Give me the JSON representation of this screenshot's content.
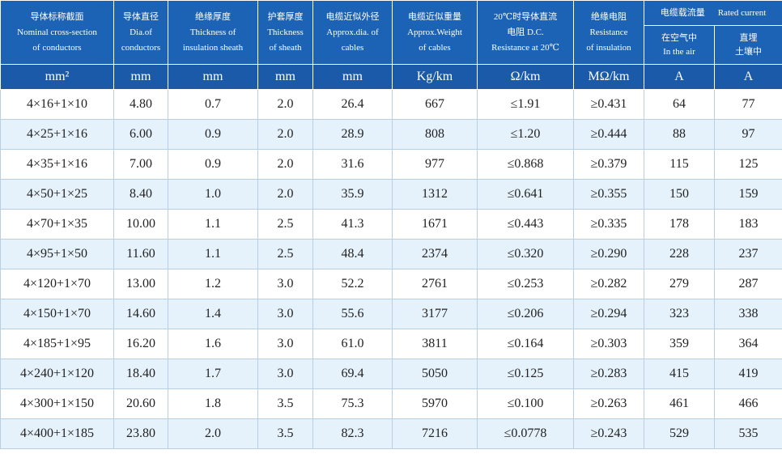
{
  "table": {
    "columns": [
      [
        "导体标称截面",
        "Nominal cross-section",
        "of conductors"
      ],
      [
        "导体直径",
        "Dia.of",
        "conductors"
      ],
      [
        "绝缘厚度",
        "Thickness of",
        "insulation sheath"
      ],
      [
        "护套厚度",
        "Thickness",
        "of sheath"
      ],
      [
        "电缆近似外径",
        "Approx.dia. of",
        "cables"
      ],
      [
        "电缆近似重量",
        "Approx.Weight",
        "of cables"
      ],
      [
        "20℃时导体直流",
        "电阻 D.C.",
        "Resistance at 20℃"
      ],
      [
        "绝缘电阻",
        "Resistance",
        "of insulation"
      ]
    ],
    "group": [
      "电缆载流量",
      "Rated current"
    ],
    "subcolumns": [
      [
        "在空气中",
        "In the air"
      ],
      [
        "直埋",
        "土壤中"
      ]
    ],
    "units": [
      "mm²",
      "mm",
      "mm",
      "mm",
      "mm",
      "Kg/km",
      "Ω/km",
      "MΩ/km",
      "A",
      "A"
    ],
    "rows": [
      [
        "4×16+1×10",
        "4.80",
        "0.7",
        "2.0",
        "26.4",
        "667",
        "≤1.91",
        "≥0.431",
        "64",
        "77"
      ],
      [
        "4×25+1×16",
        "6.00",
        "0.9",
        "2.0",
        "28.9",
        "808",
        "≤1.20",
        "≥0.444",
        "88",
        "97"
      ],
      [
        "4×35+1×16",
        "7.00",
        "0.9",
        "2.0",
        "31.6",
        "977",
        "≤0.868",
        "≥0.379",
        "115",
        "125"
      ],
      [
        "4×50+1×25",
        "8.40",
        "1.0",
        "2.0",
        "35.9",
        "1312",
        "≤0.641",
        "≥0.355",
        "150",
        "159"
      ],
      [
        "4×70+1×35",
        "10.00",
        "1.1",
        "2.5",
        "41.3",
        "1671",
        "≤0.443",
        "≥0.335",
        "178",
        "183"
      ],
      [
        "4×95+1×50",
        "11.60",
        "1.1",
        "2.5",
        "48.4",
        "2374",
        "≤0.320",
        "≥0.290",
        "228",
        "237"
      ],
      [
        "4×120+1×70",
        "13.00",
        "1.2",
        "3.0",
        "52.2",
        "2761",
        "≤0.253",
        "≥0.282",
        "279",
        "287"
      ],
      [
        "4×150+1×70",
        "14.60",
        "1.4",
        "3.0",
        "55.6",
        "3177",
        "≤0.206",
        "≥0.294",
        "323",
        "338"
      ],
      [
        "4×185+1×95",
        "16.20",
        "1.6",
        "3.0",
        "61.0",
        "3811",
        "≤0.164",
        "≥0.303",
        "359",
        "364"
      ],
      [
        "4×240+1×120",
        "18.40",
        "1.7",
        "3.0",
        "69.4",
        "5050",
        "≤0.125",
        "≥0.283",
        "415",
        "419"
      ],
      [
        "4×300+1×150",
        "20.60",
        "1.8",
        "3.5",
        "75.3",
        "5970",
        "≤0.100",
        "≥0.263",
        "461",
        "466"
      ],
      [
        "4×400+1×185",
        "23.80",
        "2.0",
        "3.5",
        "82.3",
        "7216",
        "≤0.0778",
        "≥0.243",
        "529",
        "535"
      ]
    ]
  }
}
